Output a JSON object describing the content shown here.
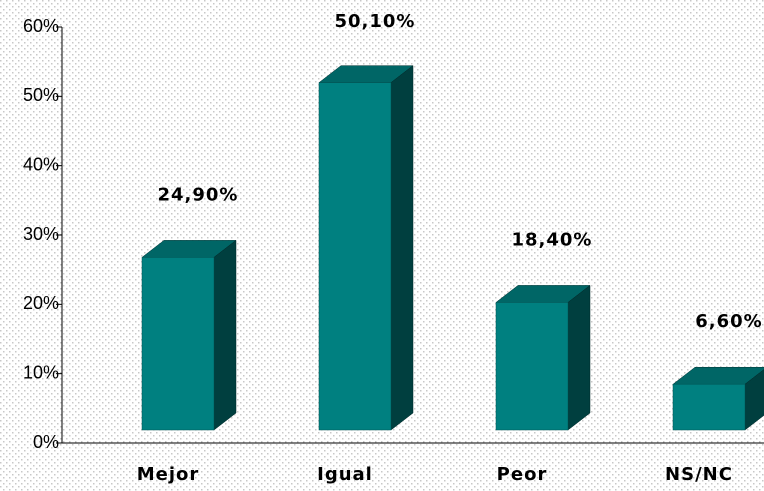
{
  "chart_data": {
    "type": "bar3d",
    "categories": [
      "Mejor",
      "Igual",
      "Peor",
      "NS/NC"
    ],
    "values": [
      24.9,
      50.1,
      18.4,
      6.6
    ],
    "value_labels": [
      "24,90%",
      "50,10%",
      "18,40%",
      "6,60%"
    ],
    "color": "#008080",
    "ylim": [
      0,
      60
    ],
    "yticks": [
      {
        "value": 0,
        "label": "0%"
      },
      {
        "value": 10,
        "label": "10%"
      },
      {
        "value": 20,
        "label": "20%"
      },
      {
        "value": 30,
        "label": "30%"
      },
      {
        "value": 40,
        "label": "40%"
      },
      {
        "value": 50,
        "label": "50%"
      },
      {
        "value": 60,
        "label": "60%"
      }
    ]
  }
}
